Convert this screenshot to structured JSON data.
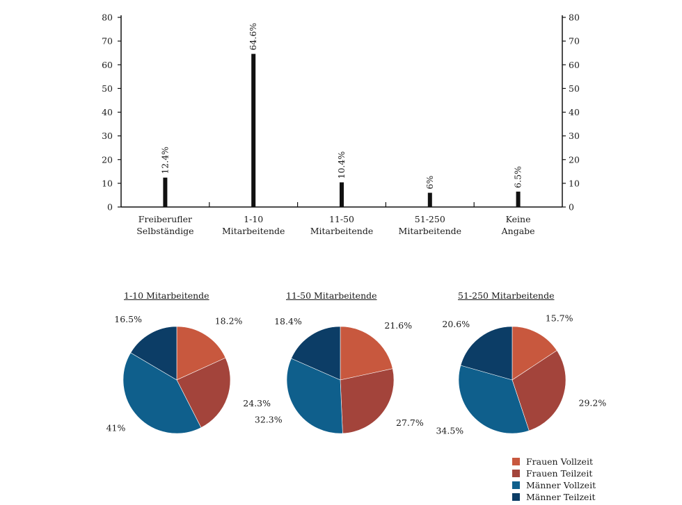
{
  "bar_chart": {
    "chart_data": {
      "type": "bar",
      "categories": [
        [
          "Freiberufler",
          "Selbständige"
        ],
        [
          "1-10",
          "Mitarbeitende"
        ],
        [
          "11-50",
          "Mitarbeitende"
        ],
        [
          "51-250",
          "Mitarbeitende"
        ],
        [
          "Keine",
          "Angabe"
        ]
      ],
      "values": [
        12.4,
        64.6,
        10.4,
        6,
        6.5
      ],
      "value_labels": [
        "12.4%",
        "64.6%",
        "10.4%",
        "6%",
        "6.5%"
      ],
      "ylim": [
        0,
        80
      ],
      "yticks": [
        0,
        10,
        20,
        30,
        40,
        50,
        60,
        70,
        80
      ],
      "secondary_y_axis": true,
      "grid": false
    }
  },
  "pies": {
    "chart_data": [
      {
        "type": "pie",
        "title": "1-10 Mitarbeitende",
        "labels": [
          "Frauen Vollzeit",
          "Frauen Teilzeit",
          "Männer Vollzeit",
          "Männer Teilzeit"
        ],
        "values": [
          18.2,
          24.3,
          41,
          16.5
        ],
        "value_labels": [
          "18.2%",
          "24.3%",
          "41%",
          "16.5%"
        ]
      },
      {
        "type": "pie",
        "title": "11-50 Mitarbeitende",
        "labels": [
          "Frauen Vollzeit",
          "Frauen Teilzeit",
          "Männer Vollzeit",
          "Männer Teilzeit"
        ],
        "values": [
          21.6,
          27.7,
          32.3,
          18.4
        ],
        "value_labels": [
          "21.6%",
          "27.7%",
          "32.3%",
          "18.4%"
        ]
      },
      {
        "type": "pie",
        "title": "51-250 Mitarbeitende",
        "labels": [
          "Frauen Vollzeit",
          "Frauen Teilzeit",
          "Männer Vollzeit",
          "Männer Teilzeit"
        ],
        "values": [
          15.7,
          29.2,
          34.5,
          20.6
        ],
        "value_labels": [
          "15.7%",
          "29.2%",
          "34.5%",
          "20.6%"
        ]
      }
    ]
  },
  "legend": {
    "items": [
      {
        "label": "Frauen Vollzeit",
        "color": "#c8583e"
      },
      {
        "label": "Frauen Teilzeit",
        "color": "#a3443b"
      },
      {
        "label": "Männer Vollzeit",
        "color": "#0f5f8c"
      },
      {
        "label": "Männer Teilzeit",
        "color": "#0c3d66"
      }
    ]
  },
  "colors": {
    "bar": "#111111",
    "axis": "#111111",
    "pie_slices": [
      "#c8583e",
      "#a3443b",
      "#0f5f8c",
      "#0c3d66"
    ]
  }
}
